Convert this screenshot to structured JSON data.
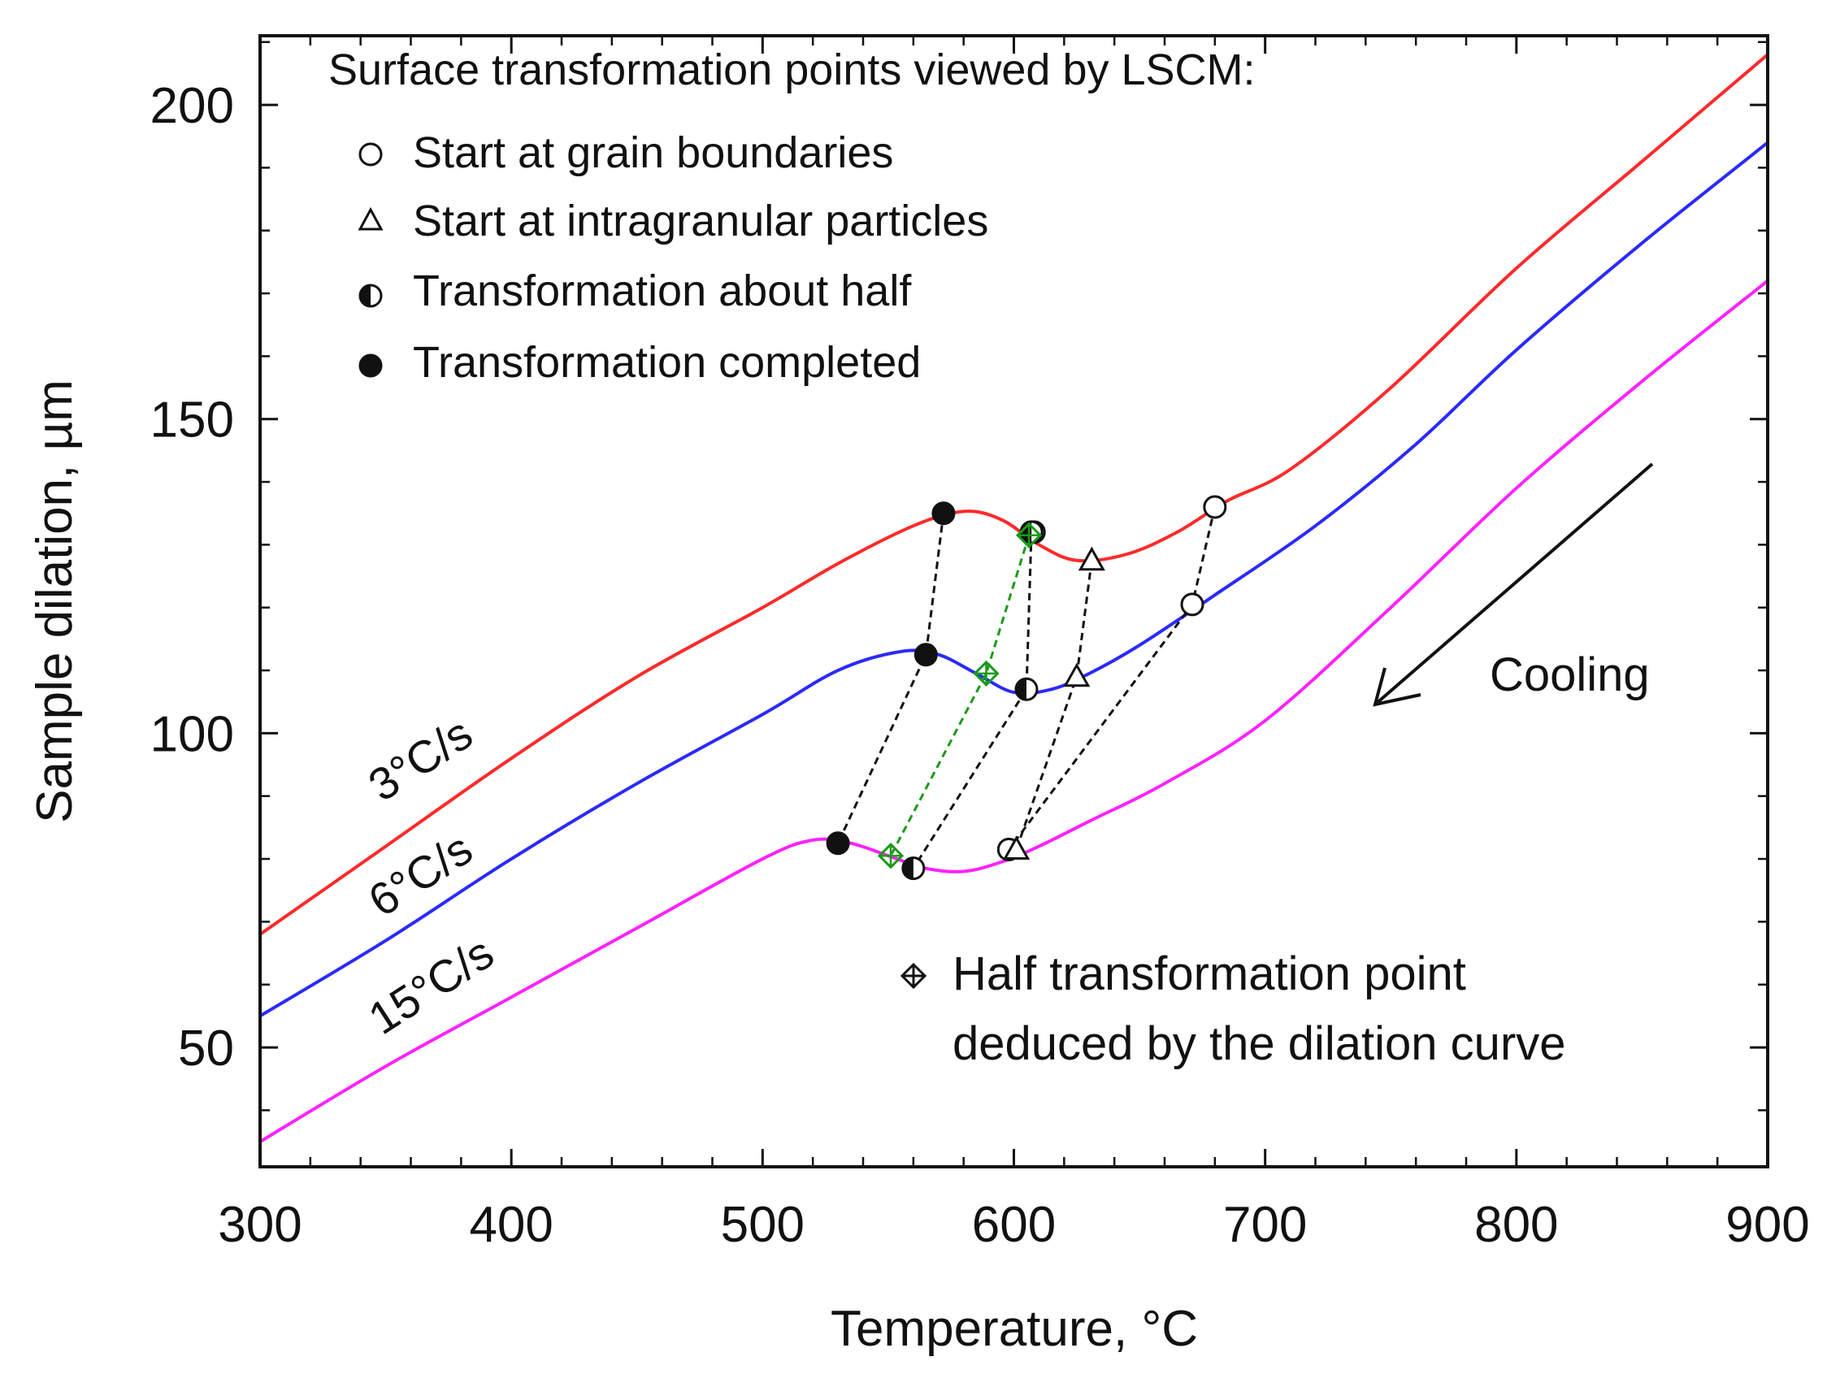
{
  "chart_data": {
    "type": "line",
    "xlabel": "Temperature, °C",
    "ylabel": "Sample dilation, µm",
    "xlim": [
      300,
      900
    ],
    "ylim": [
      31,
      211
    ],
    "x_ticks": [
      300,
      400,
      500,
      600,
      700,
      800,
      900
    ],
    "y_ticks": [
      50,
      100,
      150,
      200
    ],
    "x_tick_labels": [
      "300",
      "400",
      "500",
      "600",
      "700",
      "800",
      "900"
    ],
    "y_tick_labels": [
      "50",
      "100",
      "150",
      "200"
    ],
    "series": [
      {
        "name": "3°C/s",
        "color": "#ff2a2a",
        "x": [
          300,
          350,
          400,
          450,
          500,
          530,
          560,
          580,
          595,
          610,
          625,
          645,
          665,
          685,
          710,
          750,
          800,
          850,
          900
        ],
        "y": [
          68,
          82,
          96,
          109,
          120,
          127,
          133,
          135.3,
          134,
          130,
          127.5,
          128.5,
          132,
          137,
          142,
          155,
          174,
          191,
          208
        ]
      },
      {
        "name": "6°C/s",
        "color": "#2a2aff",
        "x": [
          300,
          350,
          400,
          450,
          500,
          530,
          555,
          570,
          585,
          600,
          615,
          630,
          650,
          680,
          720,
          760,
          800,
          850,
          900
        ],
        "y": [
          55,
          67,
          80,
          92,
          103,
          110,
          113,
          112.5,
          109.5,
          106.5,
          107,
          109.5,
          114,
          122,
          133,
          146,
          161,
          178,
          194
        ]
      },
      {
        "name": "15°C/s",
        "color": "#ff22ff",
        "x": [
          300,
          350,
          400,
          450,
          500,
          520,
          535,
          550,
          565,
          580,
          595,
          610,
          630,
          660,
          700,
          750,
          800,
          850,
          900
        ],
        "y": [
          35,
          47,
          58,
          69,
          80,
          83,
          82.5,
          80.5,
          78.5,
          78,
          79.5,
          82,
          86,
          92,
          102,
          120,
          139,
          156,
          172
        ]
      }
    ],
    "rate_labels": [
      "3°C/s",
      "6°C/s",
      "15°C/s"
    ],
    "markers": {
      "start_grain_boundaries": [
        {
          "series": "3°C/s",
          "x": 680,
          "y": 136
        },
        {
          "series": "3°C/s",
          "x": 608,
          "y": 132
        },
        {
          "series": "6°C/s",
          "x": 671,
          "y": 120.5
        },
        {
          "series": "15°C/s",
          "x": 598,
          "y": 81.5
        }
      ],
      "start_intragranular_particles": [
        {
          "series": "3°C/s",
          "x": 631,
          "y": 127.5
        },
        {
          "series": "6°C/s",
          "x": 625,
          "y": 109
        },
        {
          "series": "15°C/s",
          "x": 601,
          "y": 81.5
        }
      ],
      "transformation_about_half": [
        {
          "series": "3°C/s",
          "x": 607,
          "y": 132
        },
        {
          "series": "6°C/s",
          "x": 605,
          "y": 107
        },
        {
          "series": "15°C/s",
          "x": 560,
          "y": 78.5
        }
      ],
      "transformation_completed": [
        {
          "series": "3°C/s",
          "x": 572,
          "y": 135
        },
        {
          "series": "6°C/s",
          "x": 565,
          "y": 112.5
        },
        {
          "series": "15°C/s",
          "x": 530,
          "y": 82.5
        }
      ],
      "half_point_dilation_curve": [
        {
          "series": "3°C/s",
          "x": 606,
          "y": 131.5
        },
        {
          "series": "6°C/s",
          "x": 589,
          "y": 109.5
        },
        {
          "series": "15°C/s",
          "x": 551,
          "y": 80.5
        }
      ]
    },
    "connector_lines": [
      {
        "style": "black-dashed",
        "points": [
          [
            680,
            136
          ],
          [
            671,
            120.5
          ],
          [
            598,
            81.5
          ]
        ]
      },
      {
        "style": "black-dashed",
        "points": [
          [
            631,
            127.5
          ],
          [
            625,
            109
          ],
          [
            601,
            81.5
          ]
        ]
      },
      {
        "style": "black-dashed",
        "points": [
          [
            607,
            132
          ],
          [
            605,
            107
          ],
          [
            560,
            78.5
          ]
        ]
      },
      {
        "style": "black-dashed",
        "points": [
          [
            572,
            135
          ],
          [
            565,
            112.5
          ],
          [
            530,
            82.5
          ]
        ]
      },
      {
        "style": "green-dashed",
        "points": [
          [
            606,
            131.5
          ],
          [
            589,
            109.5
          ],
          [
            551,
            80.5
          ]
        ]
      }
    ],
    "legend": {
      "title": "Surface transformation points viewed by LSCM:",
      "items": [
        {
          "marker": "open-circle",
          "label": "Start at grain boundaries"
        },
        {
          "marker": "open-triangle",
          "label": "Start at intragranular particles"
        },
        {
          "marker": "half-filled-circle",
          "label": "Transformation about half"
        },
        {
          "marker": "filled-circle",
          "label": "Transformation completed"
        }
      ],
      "placement": "top-left"
    },
    "second_legend": {
      "marker": "crossed-diamond",
      "line1": "Half transformation point",
      "line2": "deduced by the dilation curve",
      "placement": "bottom-right"
    },
    "annotation": {
      "text": "Cooling",
      "arrow": "down-left"
    }
  }
}
